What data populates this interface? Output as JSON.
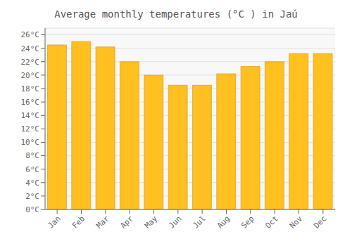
{
  "chart_data": {
    "type": "bar",
    "title": "Average monthly temperatures (°C ) in Jaú",
    "categories": [
      "Jan",
      "Feb",
      "Mar",
      "Apr",
      "May",
      "Jun",
      "Jul",
      "Aug",
      "Sep",
      "Oct",
      "Nov",
      "Dec"
    ],
    "values": [
      24.5,
      25.0,
      24.2,
      22.0,
      20.0,
      18.5,
      18.5,
      20.2,
      21.3,
      22.0,
      23.2,
      23.2
    ],
    "color": "#FFC020",
    "ylim": [
      0,
      27
    ],
    "yticks": [
      {
        "value": 0,
        "label": "0°C"
      },
      {
        "value": 2,
        "label": "2°C"
      },
      {
        "value": 4,
        "label": "4°C"
      },
      {
        "value": 6,
        "label": "6°C"
      },
      {
        "value": 8,
        "label": "8°C"
      },
      {
        "value": 10,
        "label": "10°C"
      },
      {
        "value": 12,
        "label": "12°C"
      },
      {
        "value": 14,
        "label": "14°C"
      },
      {
        "value": 16,
        "label": "16°C"
      },
      {
        "value": 18,
        "label": "18°C"
      },
      {
        "value": 20,
        "label": "20°C"
      },
      {
        "value": 22,
        "label": "22°C"
      },
      {
        "value": 24,
        "label": "24°C"
      },
      {
        "value": 26,
        "label": "26°C"
      }
    ],
    "grid": true
  }
}
